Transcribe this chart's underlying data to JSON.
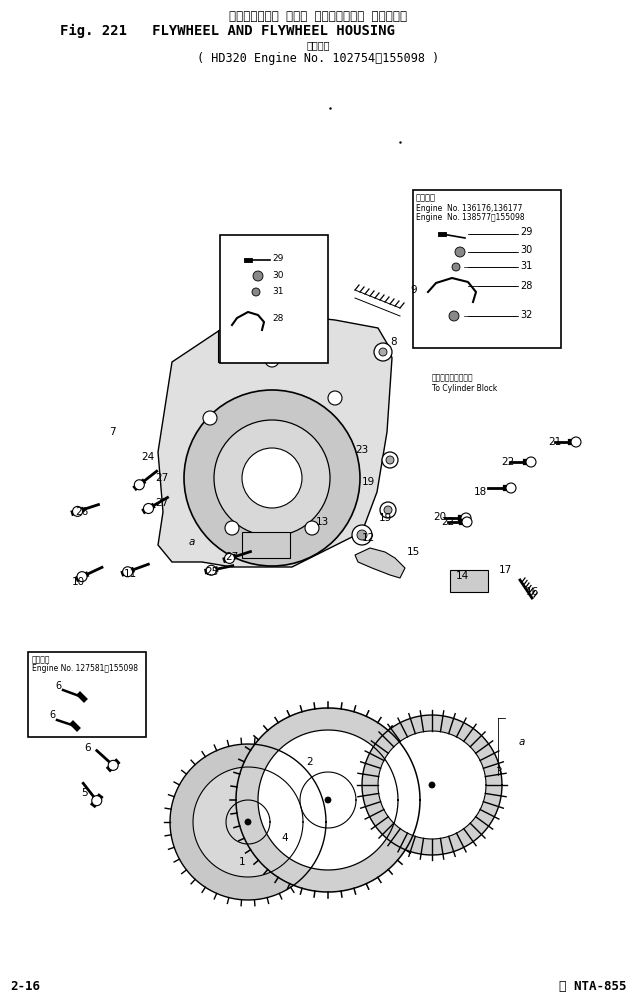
{
  "title_japanese": "フライホイール および フライホイール ハウジング",
  "title_english": "Fig. 221   FLYWHEEL AND FLYWHEEL HOUSING",
  "subtitle_japanese": "適用号機",
  "subtitle_english": "( HD320 Engine No. 102754～155098 )",
  "page_left": "2-16",
  "page_right": "ⓢ NTA-855",
  "bg_color": "#ffffff",
  "inset1_text_0": "適用号機",
  "inset1_text_1": "Engine  No. 136176,136177",
  "inset1_text_2": "Engine  No. 138577～155098",
  "inset2_label_line1": "適用号機",
  "inset2_label_line2": "Engine No. 127581～155098",
  "cylinder_block_jp": "シリンダブロックへ",
  "cylinder_block_en": "To Cylinder Block"
}
